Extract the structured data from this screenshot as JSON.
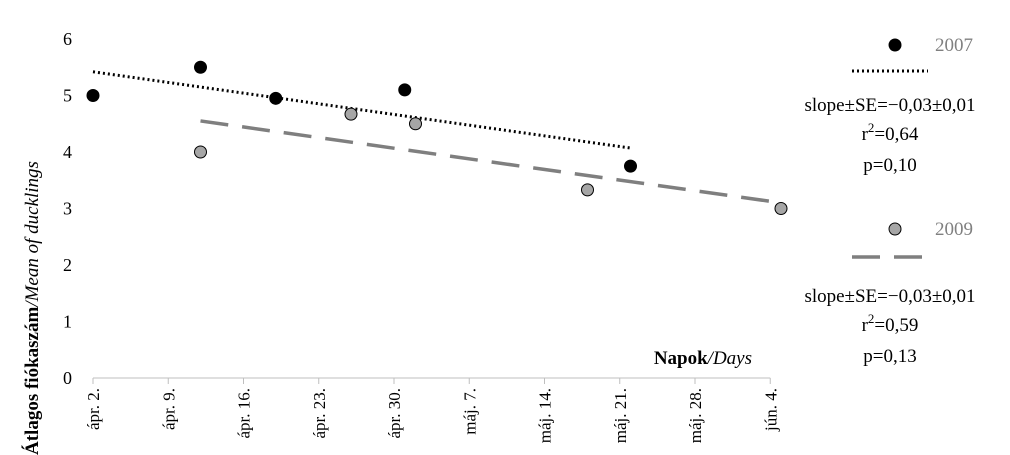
{
  "chart_data": {
    "type": "scatter",
    "ylim": [
      0,
      6
    ],
    "y_ticks": [
      "0",
      "1",
      "2",
      "3",
      "4",
      "5",
      "6"
    ],
    "x_ticks": [
      "ápr. 2.",
      "ápr. 9.",
      "ápr. 16.",
      "ápr. 23.",
      "ápr. 30.",
      "máj. 7.",
      "máj. 14.",
      "máj. 21.",
      "máj. 28.",
      "jún. 4."
    ],
    "x_tick_days": [
      0,
      7,
      14,
      21,
      28,
      35,
      42,
      49,
      56,
      63
    ],
    "ylabel_bold": "Átlagos fiókaszám",
    "ylabel_italic": "/Mean of ducklings",
    "xlabel_bold": "Napok",
    "xlabel_italic": "/Days",
    "grid": false,
    "legend_position": "right",
    "series": [
      {
        "name": "2007",
        "color": "#000000",
        "marker_fill": "#000000",
        "points": [
          {
            "x": 0,
            "y": 5.0
          },
          {
            "x": 10,
            "y": 5.5
          },
          {
            "x": 17,
            "y": 4.95
          },
          {
            "x": 29,
            "y": 5.1
          },
          {
            "x": 50,
            "y": 3.75
          }
        ],
        "trend": {
          "style": "dotted",
          "x_start": 0,
          "x_end": 50,
          "y_start": 5.42,
          "y_end": 4.07
        },
        "stats": {
          "slope": "slope±SE=−0,03±0,01",
          "r2_base": "r",
          "r2_sup": "2",
          "r2_val": "=0,64",
          "p": "p=0,10"
        }
      },
      {
        "name": "2009",
        "color": "#808080",
        "marker_fill": "#a6a6a6",
        "points": [
          {
            "x": 10,
            "y": 4.0
          },
          {
            "x": 24,
            "y": 4.67
          },
          {
            "x": 30,
            "y": 4.5
          },
          {
            "x": 46,
            "y": 3.33
          },
          {
            "x": 64,
            "y": 3.0
          }
        ],
        "trend": {
          "style": "dashed",
          "x_start": 10,
          "x_end": 64,
          "y_start": 4.55,
          "y_end": 3.1
        },
        "stats": {
          "slope": "slope±SE=−0,03±0,01",
          "r2_base": "r",
          "r2_sup": "2",
          "r2_val": "=0,59",
          "p": "p=0,13"
        }
      }
    ]
  }
}
